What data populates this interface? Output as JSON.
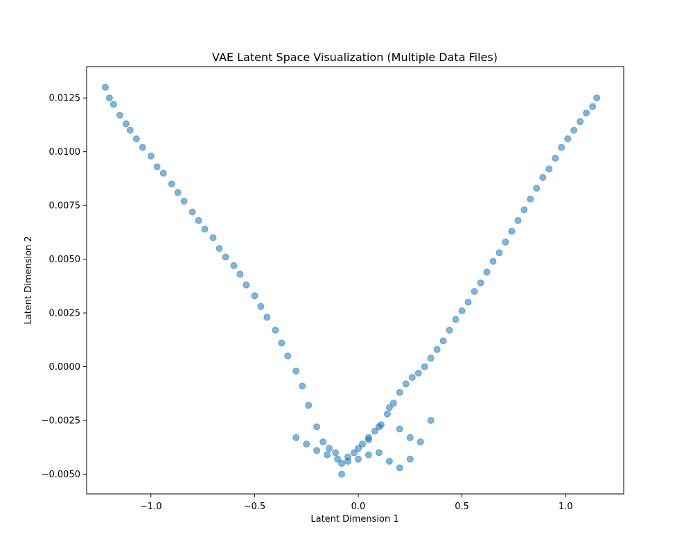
{
  "chart_data": {
    "type": "scatter",
    "title": "VAE Latent Space Visualization (Multiple Data Files)",
    "xlabel": "Latent Dimension 1",
    "ylabel": "Latent Dimension 2",
    "xlim": [
      -1.31,
      1.28
    ],
    "ylim": [
      -0.00592,
      0.01396
    ],
    "x_ticks": [
      -1.0,
      -0.5,
      0.0,
      0.5,
      1.0
    ],
    "x_tick_labels": [
      "−1.0",
      "−0.5",
      "0.0",
      "0.5",
      "1.0"
    ],
    "y_ticks": [
      -0.005,
      -0.0025,
      0.0,
      0.0025,
      0.005,
      0.0075,
      0.01,
      0.0125
    ],
    "y_tick_labels": [
      "−0.0050",
      "−0.0025",
      "0.0000",
      "0.0025",
      "0.0050",
      "0.0075",
      "0.0100",
      "0.0125"
    ],
    "grid": false,
    "marker_color": "#1f77b4",
    "marker_alpha": 0.55,
    "series": [
      {
        "x": [
          -1.22,
          -1.2,
          -1.18,
          -1.15,
          -1.12,
          -1.1,
          -1.07,
          -1.04,
          -1.0,
          -0.97,
          -0.94,
          -0.9,
          -0.87,
          -0.84,
          -0.8,
          -0.77,
          -0.74,
          -0.7,
          -0.67,
          -0.64,
          -0.6,
          -0.57,
          -0.54,
          -0.5,
          -0.47,
          -0.44,
          -0.4,
          -0.37,
          -0.34,
          -0.3,
          -0.27,
          -0.24,
          -0.2,
          -0.17,
          -0.14,
          -0.11,
          -0.08,
          -0.05,
          -0.02,
          0.0,
          0.02,
          0.05,
          0.08,
          0.11,
          0.14,
          0.17,
          0.2,
          0.23,
          0.26,
          0.29,
          0.32,
          0.35,
          0.38,
          0.41,
          0.44,
          0.47,
          0.5,
          0.53,
          0.56,
          0.59,
          0.62,
          0.65,
          0.68,
          0.71,
          0.74,
          0.77,
          0.8,
          0.83,
          0.86,
          0.89,
          0.92,
          0.95,
          0.98,
          1.01,
          1.04,
          1.07,
          1.1,
          1.13,
          1.15,
          -0.3,
          -0.25,
          -0.2,
          -0.15,
          -0.1,
          -0.05,
          0.0,
          0.05,
          0.1,
          0.15,
          0.2,
          0.25,
          0.3,
          0.35,
          0.25,
          0.2,
          0.15,
          0.1,
          0.05,
          -0.08
        ],
        "y": [
          0.013,
          0.0125,
          0.0122,
          0.0117,
          0.0113,
          0.011,
          0.0106,
          0.0102,
          0.0098,
          0.0093,
          0.009,
          0.0085,
          0.0081,
          0.0077,
          0.0072,
          0.0068,
          0.0064,
          0.006,
          0.0055,
          0.0051,
          0.0047,
          0.0043,
          0.0038,
          0.0033,
          0.0028,
          0.0023,
          0.0017,
          0.0011,
          0.0005,
          -0.0002,
          -0.0009,
          -0.0018,
          -0.0028,
          -0.0035,
          -0.0038,
          -0.004,
          -0.0045,
          -0.0042,
          -0.004,
          -0.0038,
          -0.0036,
          -0.0033,
          -0.003,
          -0.0027,
          -0.0022,
          -0.0017,
          -0.0012,
          -0.0008,
          -0.0005,
          -0.0003,
          0.0,
          0.0004,
          0.0008,
          0.0012,
          0.0017,
          0.0022,
          0.0026,
          0.003,
          0.0035,
          0.0039,
          0.0044,
          0.0049,
          0.0053,
          0.0058,
          0.0063,
          0.0068,
          0.0073,
          0.0078,
          0.0083,
          0.0088,
          0.0092,
          0.0097,
          0.0102,
          0.0106,
          0.011,
          0.0114,
          0.0118,
          0.0121,
          0.0125,
          -0.0033,
          -0.0036,
          -0.0039,
          -0.0041,
          -0.0043,
          -0.0044,
          -0.0043,
          -0.0041,
          -0.004,
          -0.0044,
          -0.0047,
          -0.0043,
          -0.0035,
          -0.0025,
          -0.0033,
          -0.0029,
          -0.0019,
          -0.0028,
          -0.0034,
          -0.005
        ]
      }
    ]
  }
}
